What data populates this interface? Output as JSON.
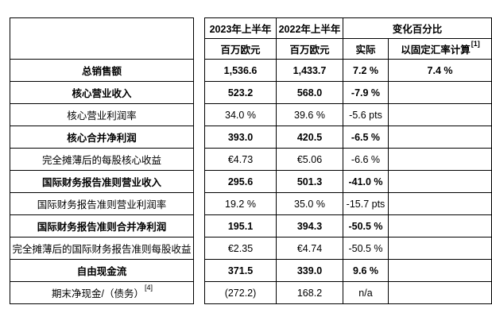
{
  "table": {
    "columns": {
      "col2023": {
        "title": "2023年上半年",
        "unit": "百万欧元"
      },
      "col2022": {
        "title": "2022年上半年",
        "unit": "百万欧元"
      },
      "change": {
        "title": "变化百分比",
        "actual": "实际",
        "cer": "以固定汇率计算",
        "cer_sup": "[1]"
      }
    },
    "rows": [
      {
        "label": "总销售额",
        "label_sup": "",
        "bold": true,
        "v2023": "1,536.6",
        "v2022": "1,433.7",
        "actual": "7.2 %",
        "cer": "7.4 %"
      },
      {
        "label": "核心营业收入",
        "label_sup": "",
        "bold": true,
        "v2023": "523.2",
        "v2022": "568.0",
        "actual": "-7.9 %",
        "cer": ""
      },
      {
        "label": "核心营业利润率",
        "label_sup": "",
        "bold": false,
        "v2023": "34.0 %",
        "v2022": "39.6 %",
        "actual": "-5.6 pts",
        "cer": ""
      },
      {
        "label": "核心合并净利润",
        "label_sup": "",
        "bold": true,
        "v2023": "393.0",
        "v2022": "420.5",
        "actual": "-6.5 %",
        "cer": ""
      },
      {
        "label": "完全摊薄后的每股核心收益",
        "label_sup": "",
        "bold": false,
        "v2023": "€4.73",
        "v2022": "€5.06",
        "actual": "-6.6 %",
        "cer": ""
      },
      {
        "label": "国际财务报告准则营业收入",
        "label_sup": "",
        "bold": true,
        "v2023": "295.6",
        "v2022": "501.3",
        "actual": "-41.0 %",
        "cer": ""
      },
      {
        "label": "国际财务报告准则营业利润率",
        "label_sup": "",
        "bold": false,
        "v2023": "19.2 %",
        "v2022": "35.0 %",
        "actual": "-15.7 pts",
        "cer": ""
      },
      {
        "label": "国际财务报告准则合并净利润",
        "label_sup": "",
        "bold": true,
        "v2023": "195.1",
        "v2022": "394.3",
        "actual": "-50.5 %",
        "cer": ""
      },
      {
        "label": "完全摊薄后的国际财务报告准则每股收益",
        "label_sup": "",
        "bold": false,
        "v2023": "€2.35",
        "v2022": "€4.74",
        "actual": "-50.5 %",
        "cer": ""
      },
      {
        "label": "自由现金流",
        "label_sup": "",
        "bold": true,
        "v2023": "371.5",
        "v2022": "339.0",
        "actual": "9.6 %",
        "cer": ""
      },
      {
        "label": "期末净现金/（债务）",
        "label_sup": "[4]",
        "bold": false,
        "v2023": "(272.2)",
        "v2022": "168.2",
        "actual": "n/a",
        "cer": ""
      }
    ]
  }
}
